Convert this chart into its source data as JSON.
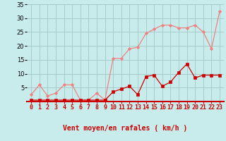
{
  "x": [
    0,
    1,
    2,
    3,
    4,
    5,
    6,
    7,
    8,
    9,
    10,
    11,
    12,
    13,
    14,
    15,
    16,
    17,
    18,
    19,
    20,
    21,
    22,
    23
  ],
  "rafales": [
    2.5,
    6,
    2,
    3,
    6,
    6,
    0.5,
    0.5,
    3,
    0.5,
    15.5,
    15.5,
    19,
    19.5,
    24.5,
    26,
    27.5,
    27.5,
    26.5,
    26.5,
    27.5,
    25,
    19,
    32.5
  ],
  "moyen": [
    0.5,
    0.5,
    0.5,
    0.5,
    0.5,
    0.5,
    0.5,
    0.5,
    0.5,
    0.5,
    3.5,
    4.5,
    5.5,
    2.5,
    9,
    9.5,
    5.5,
    7,
    10.5,
    13.5,
    8.5,
    9.5,
    9.5,
    9.5
  ],
  "color_rafales": "#f08080",
  "color_moyen": "#cc0000",
  "bg_color": "#c8ecec",
  "grid_color": "#a8cccc",
  "xlabel": "Vent moyen/en rafales ( km/h )",
  "xlabel_color": "#cc0000",
  "xlabel_fontsize": 7,
  "tick_fontsize": 6,
  "ylim": [
    0,
    35
  ],
  "yticks": [
    5,
    10,
    15,
    20,
    25,
    30,
    35
  ],
  "ytick_labels": [
    "5",
    "10",
    "15",
    "20",
    "25",
    "30",
    "35"
  ],
  "arrow_symbols": [
    "↙",
    "↓",
    "↙",
    "↓",
    "↓",
    "↓",
    "↓",
    "↓",
    "↓",
    "↘",
    "→",
    "↓",
    "→",
    "↓",
    "→",
    "↙",
    "→",
    "↙",
    "→",
    "↙",
    "→",
    "↙",
    "↘",
    "↙"
  ]
}
